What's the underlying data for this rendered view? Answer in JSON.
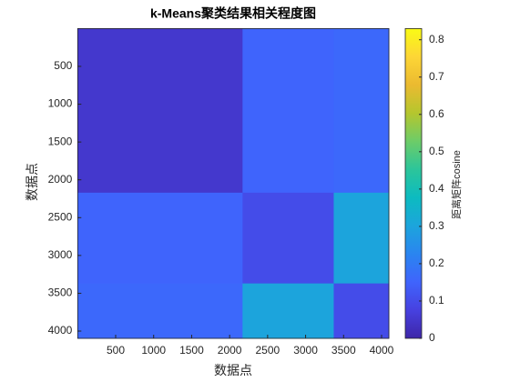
{
  "chart_data": {
    "type": "heatmap",
    "title": "k-Means聚类结果相关程度图",
    "xlabel": "数据点",
    "ylabel": "数据点",
    "colorbar_label": "距离矩阵cosine",
    "x_edges": [
      0,
      2170,
      3370,
      4096
    ],
    "y_edges": [
      0,
      2170,
      3370,
      4096
    ],
    "values": [
      [
        0.05,
        0.15,
        0.16
      ],
      [
        0.15,
        0.1,
        0.3
      ],
      [
        0.16,
        0.3,
        0.1
      ]
    ],
    "xlim": [
      0,
      4096
    ],
    "ylim": [
      0,
      4096
    ],
    "y_reversed": true,
    "xticks": [
      500,
      1000,
      1500,
      2000,
      2500,
      3000,
      3500,
      4000
    ],
    "yticks": [
      500,
      1000,
      1500,
      2000,
      2500,
      3000,
      3500,
      4000
    ],
    "clim": [
      0,
      0.83
    ],
    "cticks": [
      0,
      0.1,
      0.2,
      0.3,
      0.4,
      0.5,
      0.6,
      0.7,
      0.8
    ],
    "colormap": [
      "#3e26a8",
      "#4741e0",
      "#3f64fc",
      "#2a85f0",
      "#1ca5dc",
      "#0cbbc0",
      "#2cc59a",
      "#6dcc68",
      "#b5c62e",
      "#ebba30",
      "#fdd636",
      "#f9fb15"
    ]
  }
}
